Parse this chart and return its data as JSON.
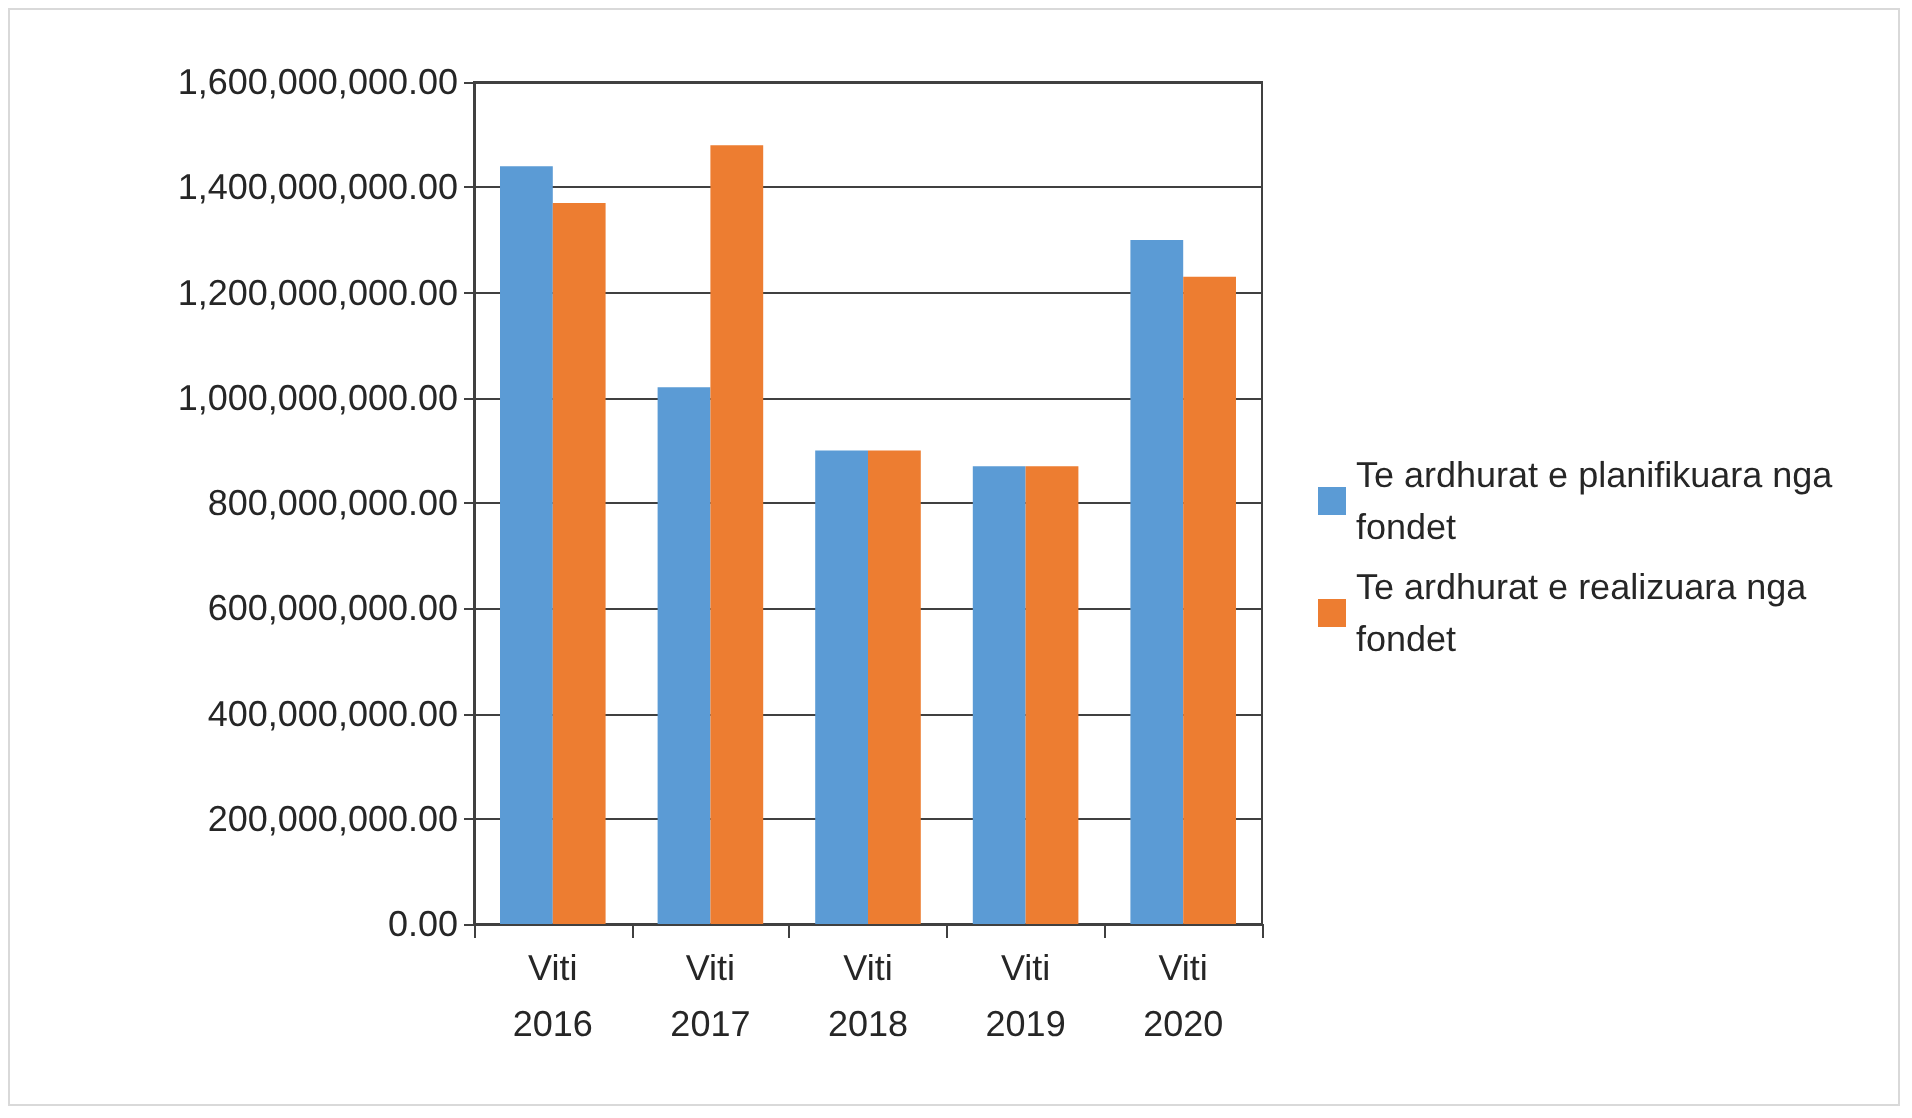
{
  "chart_data": {
    "type": "bar",
    "categories": [
      "Viti 2016",
      "Viti 2017",
      "Viti 2018",
      "Viti 2019",
      "Viti 2020"
    ],
    "series": [
      {
        "name": "Te ardhurat e planifikuara nga fondet",
        "color": "#5b9bd5",
        "values": [
          1440000000,
          1020000000,
          900000000,
          870000000,
          1300000000
        ]
      },
      {
        "name": "Te ardhurat e realizuara nga fondet",
        "color": "#ed7d31",
        "values": [
          1370000000,
          1480000000,
          900000000,
          870000000,
          1230000000
        ]
      }
    ],
    "ylim": [
      0,
      1600000000
    ],
    "yticks": [
      {
        "value": 0,
        "label": "0.00"
      },
      {
        "value": 200000000,
        "label": "200,000,000.00"
      },
      {
        "value": 400000000,
        "label": "400,000,000.00"
      },
      {
        "value": 600000000,
        "label": "600,000,000.00"
      },
      {
        "value": 800000000,
        "label": "800,000,000.00"
      },
      {
        "value": 1000000000,
        "label": "1,000,000,000.00"
      },
      {
        "value": 1200000000,
        "label": "1,200,000,000.00"
      },
      {
        "value": 1400000000,
        "label": "1,400,000,000.00"
      },
      {
        "value": 1600000000,
        "label": "1,600,000,000.00"
      }
    ],
    "grid": "y",
    "legend": "right"
  }
}
